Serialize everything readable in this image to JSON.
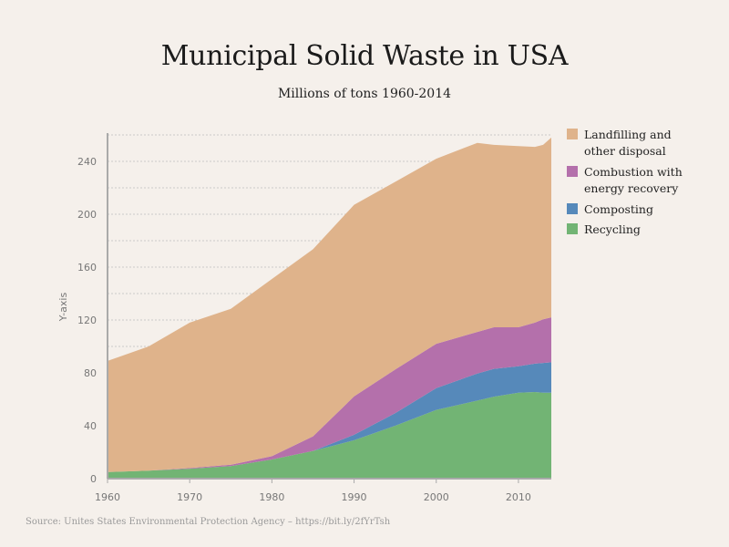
{
  "chart_data": {
    "type": "area",
    "stacked": true,
    "title": "Municipal Solid Waste in USA",
    "subtitle": "Millions of tons 1960-2014",
    "xlabel": "",
    "ylabel": "Y-axis",
    "xlim": [
      1960,
      2014
    ],
    "ylim": [
      0,
      260
    ],
    "x_ticks": [
      1960,
      1970,
      1980,
      1990,
      2000,
      2010
    ],
    "y_ticks": [
      0,
      40,
      80,
      120,
      160,
      200,
      240
    ],
    "grid": true,
    "legend_position": "right",
    "x": [
      1960,
      1965,
      1970,
      1975,
      1980,
      1985,
      1990,
      1995,
      2000,
      2005,
      2007,
      2010,
      2012,
      2013,
      2014
    ],
    "series": [
      {
        "name": "Recycling",
        "color": "#72b474",
        "values": [
          5,
          6,
          7.5,
          9.5,
          14.5,
          21,
          29,
          40,
          52,
          59,
          62,
          65,
          65.5,
          65,
          65
        ]
      },
      {
        "name": "Composting",
        "color": "#5689ba",
        "values": [
          0,
          0,
          0,
          0,
          0,
          0,
          4.2,
          9.5,
          16.5,
          20.5,
          21,
          20,
          21.5,
          22.5,
          23
        ]
      },
      {
        "name": "Combustion with energy recovery",
        "color": "#b470ab",
        "values": [
          0,
          0,
          0.5,
          1,
          2.5,
          11,
          29,
          33,
          33.5,
          31.5,
          31.5,
          29.5,
          31,
          33,
          34
        ]
      },
      {
        "name": "Landfilling and other disposal",
        "color": "#dfb38b",
        "values": [
          84,
          94,
          110,
          118,
          134,
          141.5,
          145,
          142,
          140,
          143,
          138,
          137,
          133,
          132,
          136
        ]
      }
    ],
    "source": "Source: Unites States Environmental Protection Agency – https://bit.ly/2fYrTsh"
  }
}
